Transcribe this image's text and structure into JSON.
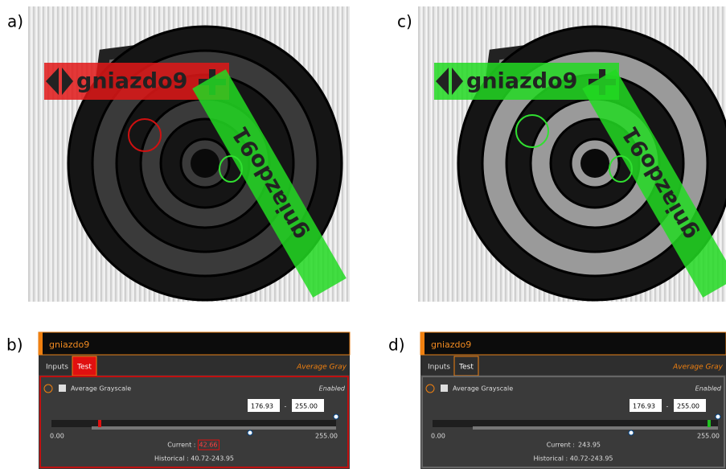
{
  "figure": {
    "images": [
      {
        "letter": "a)",
        "labels": [
          "gniazdo9",
          "gniazdo91"
        ]
      },
      {
        "letter": "c)",
        "labels": [
          "gniazdo9",
          "gniazdo91"
        ]
      }
    ],
    "ui_panels": [
      {
        "letter": "b)",
        "title": "gniazdo9",
        "tabs": [
          "Inputs",
          "Test"
        ],
        "tool_name": "Average Gray",
        "check_label": "Average Grayscale",
        "state": "Enabled",
        "low": "176.93",
        "separator": "-",
        "high": "255.00",
        "scale_min": "0.00",
        "scale_max": "255.00",
        "current_label": "Current :",
        "current": "42.66",
        "historical": "Historical : 40.72-243.95"
      },
      {
        "letter": "d)",
        "title": "gniazdo9",
        "tabs": [
          "Inputs",
          "Test"
        ],
        "tool_name": "Average Gray",
        "check_label": "Average Grayscale",
        "state": "Enabled",
        "low": "176.93",
        "separator": "-",
        "high": "255.00",
        "scale_min": "0.00",
        "scale_max": "255.00",
        "current_label": "Current :",
        "current": "243.95",
        "historical": "Historical : 40.72-243.95"
      }
    ]
  }
}
